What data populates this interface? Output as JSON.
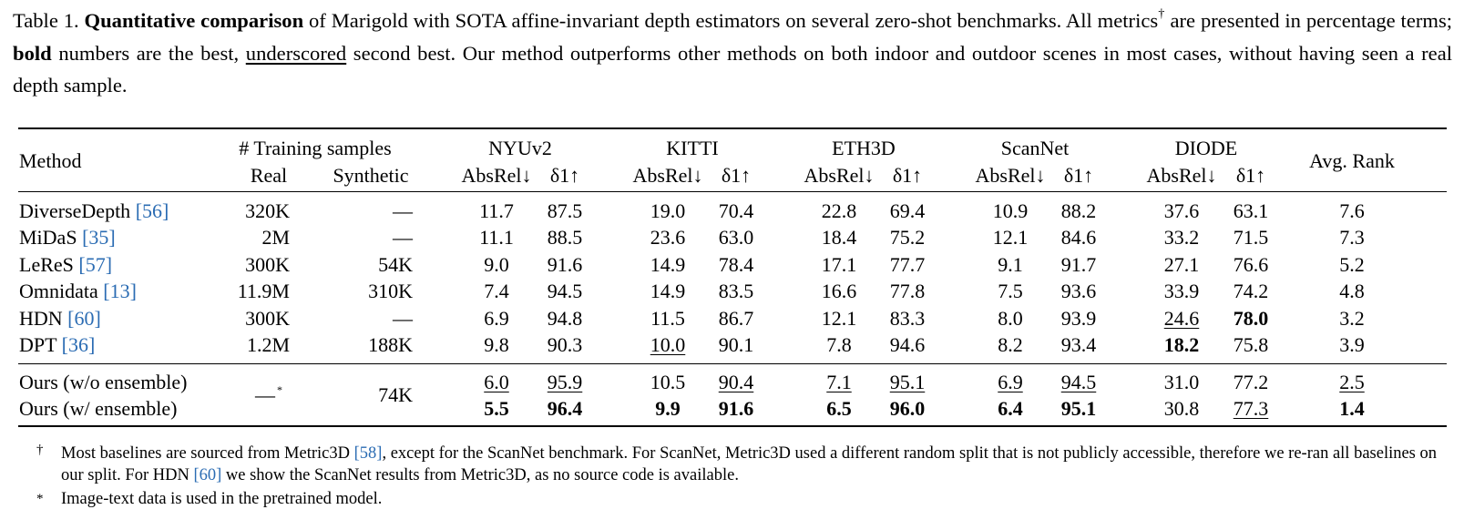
{
  "caption": {
    "prefix": "Table 1. ",
    "bold_lead": "Quantitative comparison",
    "part1": " of Marigold with SOTA affine-invariant depth estimators on several zero-shot benchmarks. All metrics",
    "dagger": "†",
    "part2": " are presented in percentage terms; ",
    "bold_word": "bold",
    "part3": " numbers are the best, ",
    "underscored_word": "underscored",
    "part4": " second best. Our method outperforms other methods on both indoor and outdoor scenes in most cases, without having seen a real depth sample."
  },
  "header": {
    "method": "Method",
    "training_samples": "# Training samples",
    "real": "Real",
    "synthetic": "Synthetic",
    "datasets": [
      "NYUv2",
      "KITTI",
      "ETH3D",
      "ScanNet",
      "DIODE"
    ],
    "absrel": "AbsRel↓",
    "delta1": "δ1↑",
    "avg_rank": "Avg. Rank"
  },
  "rows": [
    {
      "name": "DiverseDepth ",
      "ref": "[56]",
      "real": "320K",
      "synthetic": "—",
      "values": [
        "11.7",
        "87.5",
        "19.0",
        "70.4",
        "22.8",
        "69.4",
        "10.9",
        "88.2",
        "37.6",
        "63.1"
      ],
      "rank": "7.6"
    },
    {
      "name": "MiDaS ",
      "ref": "[35]",
      "real": "2M",
      "synthetic": "—",
      "values": [
        "11.1",
        "88.5",
        "23.6",
        "63.0",
        "18.4",
        "75.2",
        "12.1",
        "84.6",
        "33.2",
        "71.5"
      ],
      "rank": "7.3"
    },
    {
      "name": "LeReS ",
      "ref": "[57]",
      "real": "300K",
      "synthetic": "54K",
      "values": [
        "9.0",
        "91.6",
        "14.9",
        "78.4",
        "17.1",
        "77.7",
        "9.1",
        "91.7",
        "27.1",
        "76.6"
      ],
      "rank": "5.2"
    },
    {
      "name": "Omnidata ",
      "ref": "[13]",
      "real": "11.9M",
      "synthetic": "310K",
      "values": [
        "7.4",
        "94.5",
        "14.9",
        "83.5",
        "16.6",
        "77.8",
        "7.5",
        "93.6",
        "33.9",
        "74.2"
      ],
      "rank": "4.8"
    },
    {
      "name": "HDN ",
      "ref": "[60]",
      "real": "300K",
      "synthetic": "—",
      "values": [
        "6.9",
        "94.8",
        "11.5",
        "86.7",
        "12.1",
        "83.3",
        "8.0",
        "93.9",
        "24.6",
        "78.0"
      ],
      "rank": "3.2"
    },
    {
      "name": "DPT ",
      "ref": "[36]",
      "real": "1.2M",
      "synthetic": "188K",
      "values": [
        "9.8",
        "90.3",
        "10.0",
        "90.1",
        "7.8",
        "94.6",
        "8.2",
        "93.4",
        "18.2",
        "75.8"
      ],
      "rank": "3.9"
    }
  ],
  "ours": {
    "real": "—",
    "real_mark": "*",
    "synthetic": "74K",
    "rows": [
      {
        "name": "Ours (w/o ensemble)",
        "values": [
          "6.0",
          "95.9",
          "10.5",
          "90.4",
          "7.1",
          "95.1",
          "6.9",
          "94.5",
          "31.0",
          "77.2"
        ],
        "rank": "2.5"
      },
      {
        "name": "Ours (w/ ensemble)",
        "values": [
          "5.5",
          "96.4",
          "9.9",
          "91.6",
          "6.5",
          "96.0",
          "6.4",
          "95.1",
          "30.8",
          "77.3"
        ],
        "rank": "1.4"
      }
    ]
  },
  "footnotes": {
    "dagger_mark": "†",
    "dagger_a": "Most baselines are sourced from Metric3D ",
    "dagger_ref1": "[58]",
    "dagger_b": ", except for the ScanNet benchmark. For ScanNet, Metric3D used a different random split that is not publicly accessible, therefore we re-ran all baselines on our split. For HDN ",
    "dagger_ref2": "[60]",
    "dagger_c": " we show the ScanNet results from Metric3D, as no source code is available.",
    "star_mark": "*",
    "star_text": "Image-text data is used in the pretrained model."
  }
}
